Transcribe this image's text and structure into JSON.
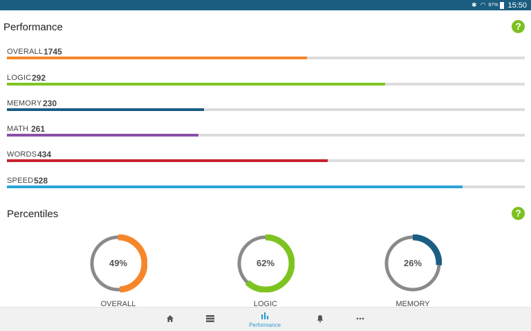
{
  "status_bar": {
    "icons": [
      "bluetooth-icon",
      "wifi-icon"
    ],
    "battery_pct": "87%",
    "time": "15:50"
  },
  "performance": {
    "title": "Performance",
    "help": "?",
    "metrics": [
      {
        "label": "OVERALL",
        "value": "1745",
        "progress": 0.58,
        "color": "#f7862a"
      },
      {
        "label": "LOGIC",
        "value": "292",
        "progress": 0.73,
        "color": "#7ec421"
      },
      {
        "label": "MEMORY",
        "value": "230",
        "progress": 0.38,
        "color": "#1c5d83"
      },
      {
        "label": "MATH",
        "value": "261",
        "progress": 0.37,
        "color": "#8b4ea6"
      },
      {
        "label": "WORDS",
        "value": "434",
        "progress": 0.62,
        "color": "#c8202f"
      },
      {
        "label": "SPEED",
        "value": "528",
        "progress": 0.88,
        "color": "#2aa3da"
      }
    ]
  },
  "percentiles": {
    "title": "Percentiles",
    "help": "?",
    "items": [
      {
        "label": "OVERALL",
        "value_text": "49%",
        "fraction": 0.49,
        "color": "#f7862a"
      },
      {
        "label": "LOGIC",
        "value_text": "62%",
        "fraction": 0.62,
        "color": "#7ec421"
      },
      {
        "label": "MEMORY",
        "value_text": "26%",
        "fraction": 0.26,
        "color": "#1c5d83"
      }
    ],
    "track_color": "#8a8a8a"
  },
  "bottom_nav": {
    "items": [
      {
        "icon": "home-icon",
        "label": ""
      },
      {
        "icon": "list-icon",
        "label": ""
      },
      {
        "icon": "bar-chart-icon",
        "label": "Performance",
        "active": true
      },
      {
        "icon": "bell-icon",
        "label": ""
      },
      {
        "icon": "more-icon",
        "label": ""
      }
    ]
  }
}
